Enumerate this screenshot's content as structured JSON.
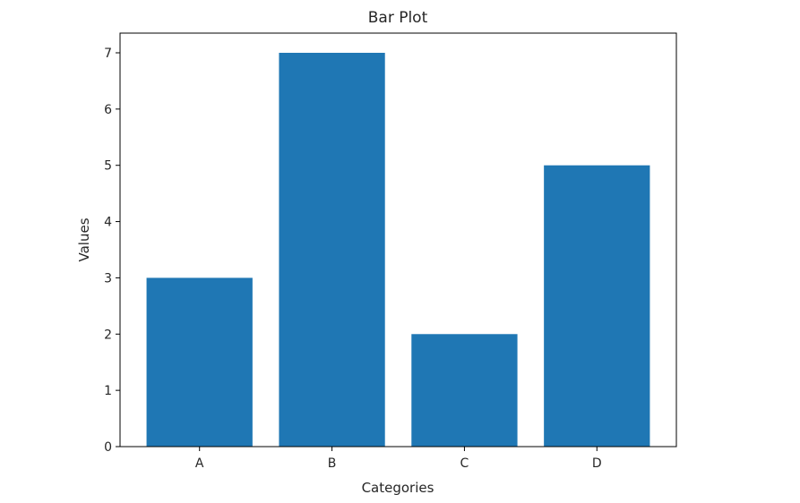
{
  "chart_data": {
    "type": "bar",
    "title": "Bar Plot",
    "xlabel": "Categories",
    "ylabel": "Values",
    "categories": [
      "A",
      "B",
      "C",
      "D"
    ],
    "values": [
      3,
      7,
      2,
      5
    ],
    "ylim": [
      0,
      7.35
    ],
    "yticks": [
      0,
      1,
      2,
      3,
      4,
      5,
      6,
      7
    ],
    "grid": false,
    "colors": {
      "bar": "#1f77b4",
      "axis": "#000000",
      "text": "#262626",
      "background": "#ffffff"
    }
  }
}
